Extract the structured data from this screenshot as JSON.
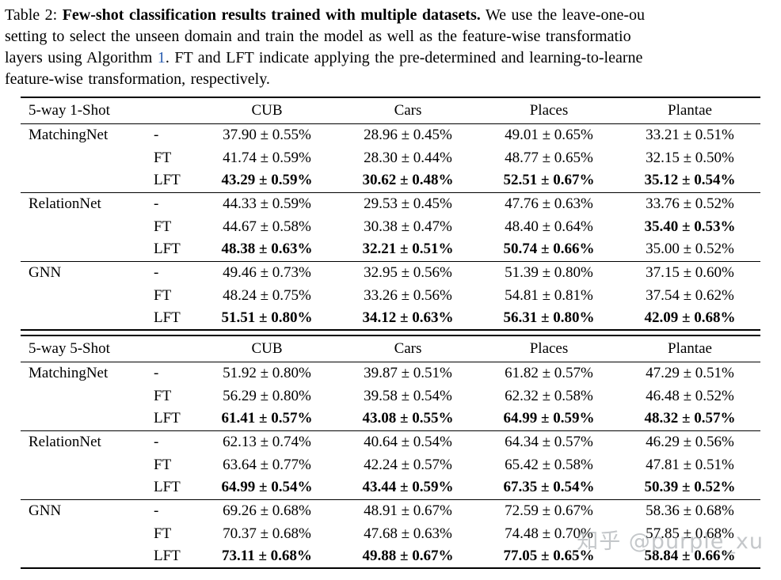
{
  "caption": {
    "link_color": "#2a5db0",
    "lines": [
      {
        "segments": [
          {
            "text": "Table 2: ",
            "style": "normal"
          },
          {
            "text": "Few-shot classification results trained with multiple datasets.",
            "style": "bold"
          },
          {
            "text": " We use the leave-one-ou",
            "style": "normal"
          }
        ]
      },
      {
        "segments": [
          {
            "text": "setting to select the unseen domain and train the model as well as the feature-wise transformatio",
            "style": "normal"
          }
        ]
      },
      {
        "segments": [
          {
            "text": "layers using Algorithm ",
            "style": "normal"
          },
          {
            "text": "1",
            "style": "link"
          },
          {
            "text": ". FT and LFT indicate applying the pre-determined and learning-to-learne",
            "style": "normal"
          }
        ]
      },
      {
        "segments": [
          {
            "text": "feature-wise transformation, respectively.",
            "style": "normal"
          }
        ]
      }
    ]
  },
  "tables": [
    {
      "header": [
        "5-way 1-Shot",
        "CUB",
        "Cars",
        "Places",
        "Plantae"
      ],
      "groups": [
        {
          "method": "MatchingNet",
          "rows": [
            {
              "variant": "-",
              "values": [
                "37.90 ± 0.55%",
                "28.96 ± 0.45%",
                "49.01 ± 0.65%",
                "33.21 ± 0.51%"
              ],
              "bold": [
                false,
                false,
                false,
                false
              ]
            },
            {
              "variant": "FT",
              "values": [
                "41.74 ± 0.59%",
                "28.30 ± 0.44%",
                "48.77 ± 0.65%",
                "32.15 ± 0.50%"
              ],
              "bold": [
                false,
                false,
                false,
                false
              ]
            },
            {
              "variant": "LFT",
              "values": [
                "43.29 ± 0.59%",
                "30.62 ± 0.48%",
                "52.51 ± 0.67%",
                "35.12 ± 0.54%"
              ],
              "bold": [
                true,
                true,
                true,
                true
              ]
            }
          ]
        },
        {
          "method": "RelationNet",
          "rows": [
            {
              "variant": "-",
              "values": [
                "44.33 ± 0.59%",
                "29.53 ± 0.45%",
                "47.76 ± 0.63%",
                "33.76 ± 0.52%"
              ],
              "bold": [
                false,
                false,
                false,
                false
              ]
            },
            {
              "variant": "FT",
              "values": [
                "44.67 ± 0.58%",
                "30.38 ± 0.47%",
                "48.40 ± 0.64%",
                "35.40 ± 0.53%"
              ],
              "bold": [
                false,
                false,
                false,
                true
              ]
            },
            {
              "variant": "LFT",
              "values": [
                "48.38 ± 0.63%",
                "32.21 ± 0.51%",
                "50.74 ± 0.66%",
                "35.00 ± 0.52%"
              ],
              "bold": [
                true,
                true,
                true,
                false
              ]
            }
          ]
        },
        {
          "method": "GNN",
          "rows": [
            {
              "variant": "-",
              "values": [
                "49.46 ± 0.73%",
                "32.95 ± 0.56%",
                "51.39 ± 0.80%",
                "37.15 ± 0.60%"
              ],
              "bold": [
                false,
                false,
                false,
                false
              ]
            },
            {
              "variant": "FT",
              "values": [
                "48.24 ± 0.75%",
                "33.26 ± 0.56%",
                "54.81 ± 0.81%",
                "37.54 ± 0.62%"
              ],
              "bold": [
                false,
                false,
                false,
                false
              ]
            },
            {
              "variant": "LFT",
              "values": [
                "51.51 ± 0.80%",
                "34.12 ± 0.63%",
                "56.31 ± 0.80%",
                "42.09 ± 0.68%"
              ],
              "bold": [
                true,
                true,
                true,
                true
              ]
            }
          ]
        }
      ]
    },
    {
      "header": [
        "5-way 5-Shot",
        "CUB",
        "Cars",
        "Places",
        "Plantae"
      ],
      "groups": [
        {
          "method": "MatchingNet",
          "rows": [
            {
              "variant": "-",
              "values": [
                "51.92 ± 0.80%",
                "39.87 ± 0.51%",
                "61.82 ± 0.57%",
                "47.29 ± 0.51%"
              ],
              "bold": [
                false,
                false,
                false,
                false
              ]
            },
            {
              "variant": "FT",
              "values": [
                "56.29 ± 0.80%",
                "39.58 ± 0.54%",
                "62.32 ± 0.58%",
                "46.48 ± 0.52%"
              ],
              "bold": [
                false,
                false,
                false,
                false
              ]
            },
            {
              "variant": "LFT",
              "values": [
                "61.41 ± 0.57%",
                "43.08 ± 0.55%",
                "64.99 ± 0.59%",
                "48.32 ± 0.57%"
              ],
              "bold": [
                true,
                true,
                true,
                true
              ]
            }
          ]
        },
        {
          "method": "RelationNet",
          "rows": [
            {
              "variant": "-",
              "values": [
                "62.13 ± 0.74%",
                "40.64 ± 0.54%",
                "64.34 ± 0.57%",
                "46.29 ± 0.56%"
              ],
              "bold": [
                false,
                false,
                false,
                false
              ]
            },
            {
              "variant": "FT",
              "values": [
                "63.64 ± 0.77%",
                "42.24 ± 0.57%",
                "65.42 ± 0.58%",
                "47.81 ± 0.51%"
              ],
              "bold": [
                false,
                false,
                false,
                false
              ]
            },
            {
              "variant": "LFT",
              "values": [
                "64.99 ± 0.54%",
                "43.44 ± 0.59%",
                "67.35 ± 0.54%",
                "50.39 ± 0.52%"
              ],
              "bold": [
                true,
                true,
                true,
                true
              ]
            }
          ]
        },
        {
          "method": "GNN",
          "rows": [
            {
              "variant": "-",
              "values": [
                "69.26 ± 0.68%",
                "48.91 ± 0.67%",
                "72.59 ± 0.67%",
                "58.36 ± 0.68%"
              ],
              "bold": [
                false,
                false,
                false,
                false
              ]
            },
            {
              "variant": "FT",
              "values": [
                "70.37 ± 0.68%",
                "47.68 ± 0.63%",
                "74.48 ± 0.70%",
                "57.85 ± 0.68%"
              ],
              "bold": [
                false,
                false,
                false,
                false
              ]
            },
            {
              "variant": "LFT",
              "values": [
                "73.11 ± 0.68%",
                "49.88 ± 0.67%",
                "77.05 ± 0.65%",
                "58.84 ± 0.66%"
              ],
              "bold": [
                true,
                true,
                true,
                true
              ]
            }
          ]
        }
      ]
    }
  ],
  "watermark": {
    "text": "知乎 @purple_xu",
    "color": "#8b9196"
  }
}
